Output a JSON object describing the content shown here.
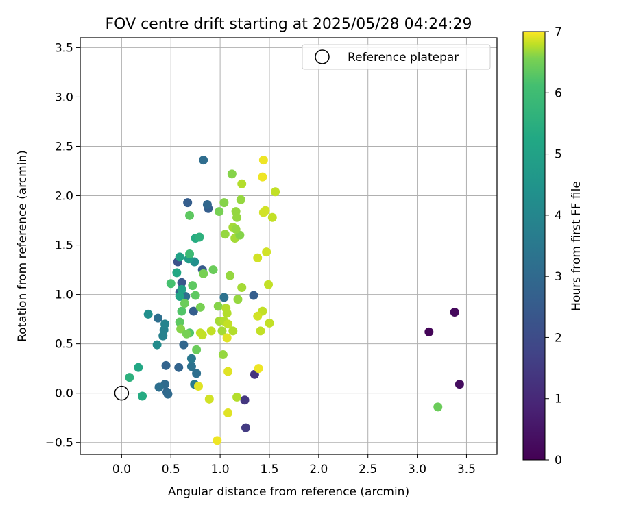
{
  "chart_data": {
    "type": "scatter",
    "title": "FOV centre drift starting at 2025/05/28 04:24:29",
    "xlabel": "Angular distance from reference (arcmin)",
    "ylabel": "Rotation from reference (arcmin)",
    "xlim": [
      -0.42,
      3.81
    ],
    "ylim": [
      -0.62,
      3.6
    ],
    "xticks": [
      "0.0",
      "0.5",
      "1.0",
      "1.5",
      "2.0",
      "2.5",
      "3.0",
      "3.5"
    ],
    "yticks": [
      "−0.5",
      "0.0",
      "0.5",
      "1.0",
      "1.5",
      "2.0",
      "2.5",
      "3.0",
      "3.5"
    ],
    "grid": true,
    "legend": {
      "position": "top-right",
      "entries": [
        "Reference platepar"
      ]
    },
    "reference_point": {
      "x": 0.0,
      "y": 0.0,
      "label": "Reference platepar",
      "marker": "open-circle"
    },
    "colorbar": {
      "label": "Hours from first FF file",
      "colormap": "viridis",
      "range": [
        0,
        7
      ],
      "ticks": [
        "0",
        "1",
        "2",
        "3",
        "4",
        "5",
        "6",
        "7"
      ]
    },
    "points": [
      {
        "x": 3.12,
        "y": 0.62,
        "h": 0.1
      },
      {
        "x": 3.38,
        "y": 0.82,
        "h": 0.2
      },
      {
        "x": 3.43,
        "y": 0.09,
        "h": 0.3
      },
      {
        "x": 1.35,
        "y": 0.19,
        "h": 1.3
      },
      {
        "x": 1.25,
        "y": -0.07,
        "h": 1.4
      },
      {
        "x": 1.26,
        "y": -0.35,
        "h": 1.5
      },
      {
        "x": 0.57,
        "y": 1.33,
        "h": 2.2
      },
      {
        "x": 0.61,
        "y": 1.12,
        "h": 2.4
      },
      {
        "x": 0.82,
        "y": 1.25,
        "h": 2.5
      },
      {
        "x": 0.67,
        "y": 1.93,
        "h": 2.6
      },
      {
        "x": 0.88,
        "y": 1.87,
        "h": 2.6
      },
      {
        "x": 0.59,
        "y": 1.02,
        "h": 2.7
      },
      {
        "x": 0.73,
        "y": 0.83,
        "h": 2.6
      },
      {
        "x": 1.34,
        "y": 0.99,
        "h": 2.6
      },
      {
        "x": 0.87,
        "y": 1.91,
        "h": 2.9
      },
      {
        "x": 0.63,
        "y": 0.49,
        "h": 2.9
      },
      {
        "x": 0.58,
        "y": 0.26,
        "h": 2.8
      },
      {
        "x": 0.45,
        "y": 0.28,
        "h": 2.8
      },
      {
        "x": 0.44,
        "y": 0.09,
        "h": 3.0
      },
      {
        "x": 0.46,
        "y": 0.01,
        "h": 2.9
      },
      {
        "x": 0.47,
        "y": -0.01,
        "h": 3.0
      },
      {
        "x": 0.38,
        "y": 0.06,
        "h": 3.2
      },
      {
        "x": 0.76,
        "y": 0.2,
        "h": 3.2
      },
      {
        "x": 0.71,
        "y": 0.27,
        "h": 3.3
      },
      {
        "x": 0.83,
        "y": 2.36,
        "h": 3.1
      },
      {
        "x": 0.37,
        "y": 0.76,
        "h": 3.2
      },
      {
        "x": 0.65,
        "y": 0.98,
        "h": 3.2
      },
      {
        "x": 1.04,
        "y": 0.97,
        "h": 3.3
      },
      {
        "x": 0.71,
        "y": 0.35,
        "h": 3.5
      },
      {
        "x": 0.74,
        "y": 0.09,
        "h": 3.6
      },
      {
        "x": 0.43,
        "y": 0.64,
        "h": 3.8
      },
      {
        "x": 0.44,
        "y": 0.7,
        "h": 3.9
      },
      {
        "x": 0.42,
        "y": 0.58,
        "h": 3.8
      },
      {
        "x": 0.36,
        "y": 0.49,
        "h": 4.2
      },
      {
        "x": 0.27,
        "y": 0.8,
        "h": 4.3
      },
      {
        "x": 0.74,
        "y": 1.33,
        "h": 4.3
      },
      {
        "x": 0.68,
        "y": 1.36,
        "h": 4.8
      },
      {
        "x": 0.59,
        "y": 1.38,
        "h": 5.0
      },
      {
        "x": 0.56,
        "y": 1.22,
        "h": 5.2
      },
      {
        "x": 0.61,
        "y": 1.05,
        "h": 5.0
      },
      {
        "x": 0.59,
        "y": 0.98,
        "h": 5.1
      },
      {
        "x": 0.75,
        "y": 1.57,
        "h": 5.3
      },
      {
        "x": 0.79,
        "y": 1.58,
        "h": 5.4
      },
      {
        "x": 0.69,
        "y": 1.41,
        "h": 5.6
      },
      {
        "x": 0.17,
        "y": 0.26,
        "h": 5.2
      },
      {
        "x": 0.08,
        "y": 0.16,
        "h": 5.4
      },
      {
        "x": 0.21,
        "y": -0.03,
        "h": 5.3
      },
      {
        "x": 0.5,
        "y": 1.11,
        "h": 5.7
      },
      {
        "x": 0.61,
        "y": 0.83,
        "h": 5.8
      },
      {
        "x": 0.59,
        "y": 0.72,
        "h": 5.9
      },
      {
        "x": 0.69,
        "y": 0.61,
        "h": 5.8
      },
      {
        "x": 0.64,
        "y": 0.91,
        "h": 6.0
      },
      {
        "x": 0.72,
        "y": 1.09,
        "h": 5.9
      },
      {
        "x": 0.75,
        "y": 0.99,
        "h": 5.9
      },
      {
        "x": 0.69,
        "y": 1.8,
        "h": 5.9
      },
      {
        "x": 0.83,
        "y": 1.21,
        "h": 6.1
      },
      {
        "x": 0.8,
        "y": 0.87,
        "h": 6.1
      },
      {
        "x": 0.93,
        "y": 1.25,
        "h": 6.0
      },
      {
        "x": 0.6,
        "y": 0.65,
        "h": 6.2
      },
      {
        "x": 0.66,
        "y": 0.6,
        "h": 6.1
      },
      {
        "x": 0.76,
        "y": 0.44,
        "h": 6.0
      },
      {
        "x": 3.21,
        "y": -0.14,
        "h": 6.0
      },
      {
        "x": 0.99,
        "y": 1.84,
        "h": 6.1
      },
      {
        "x": 1.04,
        "y": 1.93,
        "h": 6.2
      },
      {
        "x": 1.12,
        "y": 2.22,
        "h": 6.2
      },
      {
        "x": 1.16,
        "y": 1.84,
        "h": 6.3
      },
      {
        "x": 1.21,
        "y": 1.96,
        "h": 6.3
      },
      {
        "x": 1.13,
        "y": 1.68,
        "h": 6.4
      },
      {
        "x": 1.05,
        "y": 1.61,
        "h": 6.3
      },
      {
        "x": 1.17,
        "y": 1.78,
        "h": 6.3
      },
      {
        "x": 1.15,
        "y": 1.57,
        "h": 6.4
      },
      {
        "x": 1.2,
        "y": 1.6,
        "h": 6.2
      },
      {
        "x": 1.16,
        "y": 1.66,
        "h": 6.3
      },
      {
        "x": 1.1,
        "y": 1.19,
        "h": 6.3
      },
      {
        "x": 1.22,
        "y": 1.07,
        "h": 6.4
      },
      {
        "x": 1.18,
        "y": 0.95,
        "h": 6.3
      },
      {
        "x": 0.98,
        "y": 0.88,
        "h": 6.2
      },
      {
        "x": 1.06,
        "y": 0.86,
        "h": 6.5
      },
      {
        "x": 1.07,
        "y": 0.81,
        "h": 6.5
      },
      {
        "x": 0.99,
        "y": 0.73,
        "h": 6.4
      },
      {
        "x": 1.04,
        "y": 0.73,
        "h": 6.5
      },
      {
        "x": 1.08,
        "y": 0.7,
        "h": 6.6
      },
      {
        "x": 1.02,
        "y": 0.63,
        "h": 6.4
      },
      {
        "x": 1.13,
        "y": 0.63,
        "h": 6.5
      },
      {
        "x": 1.03,
        "y": 0.39,
        "h": 6.3
      },
      {
        "x": 1.17,
        "y": -0.04,
        "h": 6.5
      },
      {
        "x": 0.8,
        "y": 0.61,
        "h": 6.6
      },
      {
        "x": 0.82,
        "y": 0.59,
        "h": 6.6
      },
      {
        "x": 0.91,
        "y": 0.63,
        "h": 6.6
      },
      {
        "x": 1.22,
        "y": 2.12,
        "h": 6.5
      },
      {
        "x": 1.56,
        "y": 2.04,
        "h": 6.6
      },
      {
        "x": 1.53,
        "y": 1.78,
        "h": 6.6
      },
      {
        "x": 1.44,
        "y": 1.83,
        "h": 6.7
      },
      {
        "x": 1.46,
        "y": 1.85,
        "h": 6.7
      },
      {
        "x": 1.47,
        "y": 1.43,
        "h": 6.7
      },
      {
        "x": 1.38,
        "y": 1.37,
        "h": 6.7
      },
      {
        "x": 1.49,
        "y": 1.1,
        "h": 6.6
      },
      {
        "x": 1.43,
        "y": 0.83,
        "h": 6.6
      },
      {
        "x": 1.38,
        "y": 0.78,
        "h": 6.7
      },
      {
        "x": 1.5,
        "y": 0.71,
        "h": 6.6
      },
      {
        "x": 1.41,
        "y": 0.63,
        "h": 6.6
      },
      {
        "x": 0.89,
        "y": -0.06,
        "h": 6.7
      },
      {
        "x": 1.08,
        "y": 0.22,
        "h": 6.8
      },
      {
        "x": 1.07,
        "y": 0.56,
        "h": 6.8
      },
      {
        "x": 1.08,
        "y": -0.2,
        "h": 6.8
      },
      {
        "x": 0.97,
        "y": -0.48,
        "h": 6.9
      },
      {
        "x": 0.78,
        "y": 0.07,
        "h": 6.8
      },
      {
        "x": 1.39,
        "y": 0.25,
        "h": 6.9
      },
      {
        "x": 1.44,
        "y": 2.36,
        "h": 6.9
      },
      {
        "x": 1.43,
        "y": 2.19,
        "h": 6.9
      }
    ]
  }
}
